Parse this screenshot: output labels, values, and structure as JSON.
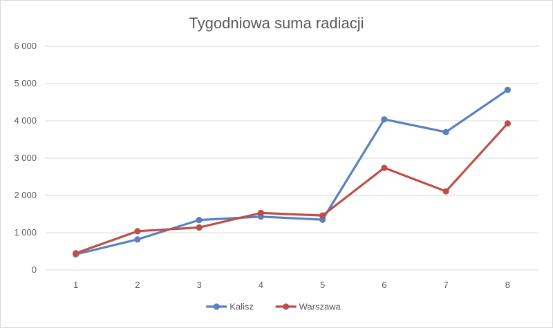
{
  "chart_data": {
    "type": "line",
    "title": "Tygodniowa suma radiacji",
    "xlabel": "",
    "ylabel": "",
    "x": [
      "1",
      "2",
      "3",
      "4",
      "5",
      "6",
      "7",
      "8"
    ],
    "ylim": [
      0,
      6000
    ],
    "yticks": [
      0,
      1000,
      2000,
      3000,
      4000,
      5000,
      6000
    ],
    "ytick_labels": [
      "0",
      "1 000",
      "2 000",
      "3 000",
      "4 000",
      "5 000",
      "6 000"
    ],
    "grid": "horizontal",
    "legend_position": "bottom",
    "series": [
      {
        "name": "Kalisz",
        "color": "#5a80bd",
        "values": [
          420,
          820,
          1340,
          1430,
          1350,
          4040,
          3700,
          4830
        ]
      },
      {
        "name": "Warszawa",
        "color": "#bd4f4b",
        "values": [
          450,
          1040,
          1140,
          1530,
          1460,
          2740,
          2110,
          3930
        ]
      }
    ]
  }
}
